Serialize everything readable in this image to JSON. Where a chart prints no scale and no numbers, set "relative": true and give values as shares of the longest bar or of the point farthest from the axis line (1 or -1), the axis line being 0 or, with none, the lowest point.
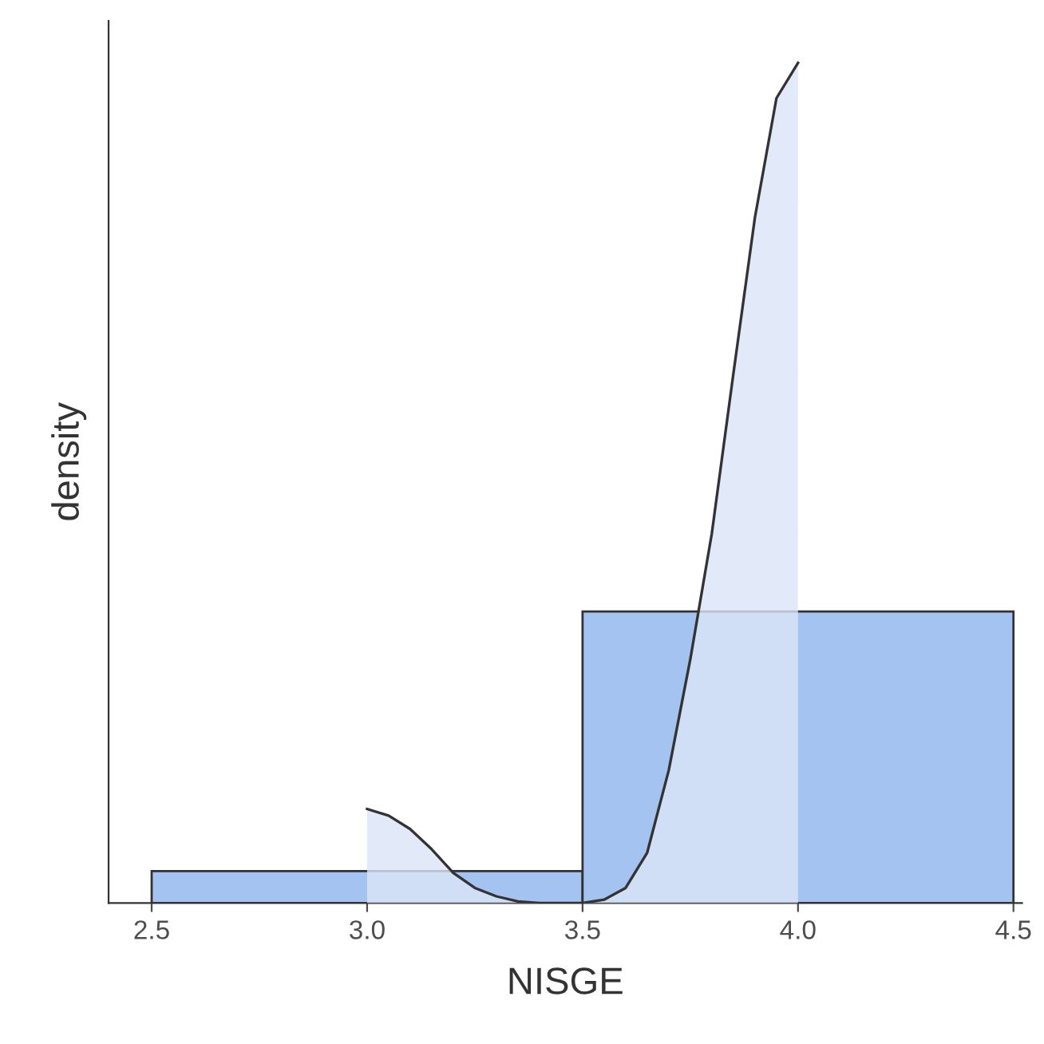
{
  "chart_data": {
    "type": "histogram",
    "xlabel": "NISGE",
    "ylabel": "density",
    "relative": true,
    "bins": [
      2.5,
      3.5,
      4.5
    ],
    "values": [
      0.038,
      0.347
    ],
    "color": "#a4c3f0",
    "series": [
      {
        "type": "area",
        "color": "#dbe5f7",
        "x": [
          3.0,
          3.05,
          3.1,
          3.15,
          3.2,
          3.25,
          3.3,
          3.35,
          3.4,
          3.45,
          3.5,
          3.55,
          3.6,
          3.65,
          3.7,
          3.75,
          3.8,
          3.85,
          3.9,
          3.95,
          4.0
        ],
        "values": [
          0.112,
          0.104,
          0.088,
          0.064,
          0.036,
          0.018,
          0.008,
          0.002,
          0.0,
          0.0,
          0.0,
          0.004,
          0.018,
          0.06,
          0.158,
          0.29,
          0.44,
          0.63,
          0.816,
          0.958,
          1.0
        ]
      }
    ],
    "xlim": [
      2.4,
      4.52
    ],
    "xticks": [
      {
        "value": 2.5,
        "label": "2.5"
      },
      {
        "value": 3.0,
        "label": "3.0"
      },
      {
        "value": 3.5,
        "label": "3.5"
      },
      {
        "value": 4.0,
        "label": "4.0"
      },
      {
        "value": 4.5,
        "label": "4.5"
      }
    ],
    "tick_labels": "x",
    "grid": false,
    "legend": false
  }
}
